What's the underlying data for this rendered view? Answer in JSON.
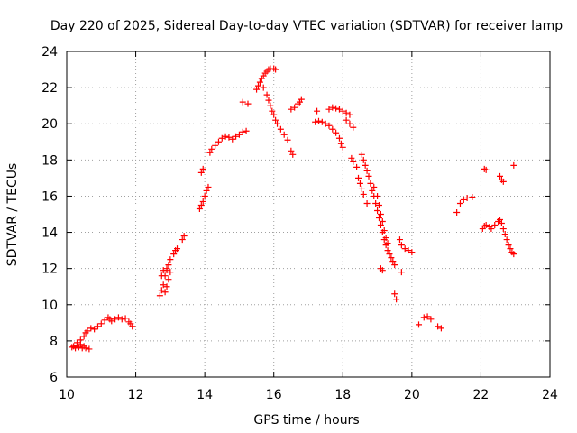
{
  "chart_data": {
    "type": "scatter",
    "title": "Day 220 of 2025, Sidereal Day-to-day VTEC variation (SDTVAR) for receiver lamp",
    "xlabel": "GPS time / hours",
    "ylabel": "SDTVAR / TECUs",
    "xlim": [
      10,
      24
    ],
    "ylim": [
      6,
      24
    ],
    "xticks": [
      "10",
      "12",
      "14",
      "16",
      "18",
      "20",
      "22",
      "24"
    ],
    "yticks": [
      "6",
      "8",
      "10",
      "12",
      "14",
      "16",
      "18",
      "20",
      "22",
      "24"
    ],
    "grid": true,
    "marker": "+",
    "marker_color": "#ff0000",
    "series": [
      {
        "name": "SDTVAR",
        "points": [
          [
            10.15,
            7.65
          ],
          [
            10.2,
            7.7
          ],
          [
            10.25,
            7.6
          ],
          [
            10.3,
            7.75
          ],
          [
            10.35,
            7.65
          ],
          [
            10.4,
            7.8
          ],
          [
            10.45,
            7.6
          ],
          [
            10.5,
            7.7
          ],
          [
            10.55,
            7.6
          ],
          [
            10.65,
            7.55
          ],
          [
            10.3,
            7.9
          ],
          [
            10.4,
            8.05
          ],
          [
            10.5,
            8.25
          ],
          [
            10.55,
            8.45
          ],
          [
            10.6,
            8.55
          ],
          [
            10.7,
            8.7
          ],
          [
            10.8,
            8.65
          ],
          [
            10.9,
            8.8
          ],
          [
            11.0,
            8.95
          ],
          [
            11.1,
            9.15
          ],
          [
            11.2,
            9.3
          ],
          [
            11.25,
            9.2
          ],
          [
            11.3,
            9.1
          ],
          [
            11.4,
            9.2
          ],
          [
            11.5,
            9.3
          ],
          [
            11.6,
            9.2
          ],
          [
            11.7,
            9.25
          ],
          [
            11.8,
            9.05
          ],
          [
            11.85,
            8.95
          ],
          [
            11.9,
            8.8
          ],
          [
            12.7,
            10.5
          ],
          [
            12.75,
            10.8
          ],
          [
            12.8,
            11.1
          ],
          [
            12.85,
            11.6
          ],
          [
            12.9,
            11.9
          ],
          [
            12.95,
            12.2
          ],
          [
            13.0,
            12.5
          ],
          [
            13.1,
            12.8
          ],
          [
            13.15,
            13.0
          ],
          [
            13.2,
            13.1
          ],
          [
            12.75,
            11.6
          ],
          [
            12.8,
            11.9
          ],
          [
            12.9,
            12.0
          ],
          [
            13.0,
            11.8
          ],
          [
            12.95,
            11.4
          ],
          [
            12.9,
            11.0
          ],
          [
            12.85,
            10.7
          ],
          [
            13.35,
            13.6
          ],
          [
            13.4,
            13.8
          ],
          [
            13.85,
            15.3
          ],
          [
            13.9,
            15.5
          ],
          [
            13.95,
            15.7
          ],
          [
            14.0,
            16.0
          ],
          [
            14.05,
            16.3
          ],
          [
            14.1,
            16.5
          ],
          [
            13.9,
            17.3
          ],
          [
            13.95,
            17.5
          ],
          [
            14.15,
            18.4
          ],
          [
            14.2,
            18.6
          ],
          [
            14.3,
            18.8
          ],
          [
            14.4,
            19.0
          ],
          [
            14.5,
            19.2
          ],
          [
            14.6,
            19.3
          ],
          [
            14.7,
            19.25
          ],
          [
            14.8,
            19.15
          ],
          [
            14.9,
            19.3
          ],
          [
            15.0,
            19.4
          ],
          [
            15.1,
            19.55
          ],
          [
            15.2,
            19.6
          ],
          [
            15.1,
            21.2
          ],
          [
            15.25,
            21.1
          ],
          [
            15.5,
            21.9
          ],
          [
            15.55,
            22.1
          ],
          [
            15.6,
            22.3
          ],
          [
            15.65,
            22.5
          ],
          [
            15.7,
            22.65
          ],
          [
            15.75,
            22.8
          ],
          [
            15.8,
            22.9
          ],
          [
            15.85,
            23.0
          ],
          [
            15.9,
            23.05
          ],
          [
            16.0,
            23.05
          ],
          [
            16.05,
            23.0
          ],
          [
            15.7,
            22.0
          ],
          [
            15.8,
            21.6
          ],
          [
            15.85,
            21.3
          ],
          [
            15.9,
            21.0
          ],
          [
            15.95,
            20.7
          ],
          [
            16.0,
            20.5
          ],
          [
            16.05,
            20.2
          ],
          [
            16.1,
            20.0
          ],
          [
            16.2,
            19.7
          ],
          [
            16.3,
            19.4
          ],
          [
            16.4,
            19.1
          ],
          [
            16.5,
            18.5
          ],
          [
            16.55,
            18.3
          ],
          [
            16.5,
            20.8
          ],
          [
            16.6,
            20.9
          ],
          [
            16.7,
            21.1
          ],
          [
            16.75,
            21.2
          ],
          [
            16.8,
            21.35
          ],
          [
            17.25,
            20.7
          ],
          [
            17.2,
            20.1
          ],
          [
            17.3,
            20.15
          ],
          [
            17.4,
            20.1
          ],
          [
            17.5,
            20.0
          ],
          [
            17.6,
            19.9
          ],
          [
            17.7,
            19.7
          ],
          [
            17.8,
            19.5
          ],
          [
            17.9,
            19.2
          ],
          [
            17.95,
            18.9
          ],
          [
            18.0,
            18.7
          ],
          [
            17.6,
            20.8
          ],
          [
            17.7,
            20.9
          ],
          [
            17.8,
            20.85
          ],
          [
            17.9,
            20.8
          ],
          [
            18.0,
            20.7
          ],
          [
            18.1,
            20.6
          ],
          [
            18.2,
            20.5
          ],
          [
            18.1,
            20.2
          ],
          [
            18.2,
            20.0
          ],
          [
            18.3,
            19.8
          ],
          [
            18.25,
            18.1
          ],
          [
            18.3,
            17.9
          ],
          [
            18.4,
            17.6
          ],
          [
            18.45,
            17.0
          ],
          [
            18.5,
            16.7
          ],
          [
            18.55,
            16.4
          ],
          [
            18.6,
            16.1
          ],
          [
            18.7,
            15.6
          ],
          [
            18.55,
            18.3
          ],
          [
            18.6,
            18.0
          ],
          [
            18.65,
            17.7
          ],
          [
            18.7,
            17.4
          ],
          [
            18.75,
            17.1
          ],
          [
            18.8,
            16.7
          ],
          [
            18.85,
            16.3
          ],
          [
            18.9,
            16.0
          ],
          [
            18.95,
            15.6
          ],
          [
            19.0,
            15.2
          ],
          [
            19.05,
            14.8
          ],
          [
            19.1,
            14.4
          ],
          [
            19.15,
            14.0
          ],
          [
            19.2,
            13.6
          ],
          [
            19.25,
            13.3
          ],
          [
            19.3,
            13.0
          ],
          [
            19.35,
            12.8
          ],
          [
            19.4,
            12.6
          ],
          [
            19.45,
            12.4
          ],
          [
            19.5,
            12.2
          ],
          [
            18.9,
            16.5
          ],
          [
            19.0,
            16.0
          ],
          [
            19.05,
            15.5
          ],
          [
            19.1,
            15.0
          ],
          [
            19.15,
            14.6
          ],
          [
            19.2,
            14.1
          ],
          [
            19.25,
            13.7
          ],
          [
            19.3,
            13.4
          ],
          [
            19.1,
            12.0
          ],
          [
            19.15,
            11.9
          ],
          [
            19.5,
            10.6
          ],
          [
            19.55,
            10.3
          ],
          [
            19.7,
            11.8
          ],
          [
            19.65,
            13.6
          ],
          [
            19.7,
            13.3
          ],
          [
            19.8,
            13.1
          ],
          [
            19.9,
            13.0
          ],
          [
            20.0,
            12.9
          ],
          [
            20.2,
            8.9
          ],
          [
            20.35,
            9.3
          ],
          [
            20.45,
            9.35
          ],
          [
            20.55,
            9.2
          ],
          [
            20.75,
            8.8
          ],
          [
            20.85,
            8.7
          ],
          [
            21.3,
            15.1
          ],
          [
            21.4,
            15.6
          ],
          [
            21.5,
            15.8
          ],
          [
            21.6,
            15.9
          ],
          [
            21.75,
            15.95
          ],
          [
            22.05,
            14.2
          ],
          [
            22.1,
            14.35
          ],
          [
            22.15,
            14.4
          ],
          [
            22.25,
            14.3
          ],
          [
            22.3,
            14.2
          ],
          [
            22.4,
            14.4
          ],
          [
            22.5,
            14.6
          ],
          [
            22.55,
            14.7
          ],
          [
            22.6,
            14.5
          ],
          [
            22.65,
            14.2
          ],
          [
            22.7,
            13.9
          ],
          [
            22.75,
            13.6
          ],
          [
            22.8,
            13.3
          ],
          [
            22.85,
            13.1
          ],
          [
            22.9,
            12.9
          ],
          [
            22.95,
            12.8
          ],
          [
            22.1,
            17.5
          ],
          [
            22.15,
            17.45
          ],
          [
            22.55,
            17.1
          ],
          [
            22.6,
            16.9
          ],
          [
            22.65,
            16.8
          ],
          [
            22.95,
            17.7
          ]
        ]
      }
    ]
  }
}
